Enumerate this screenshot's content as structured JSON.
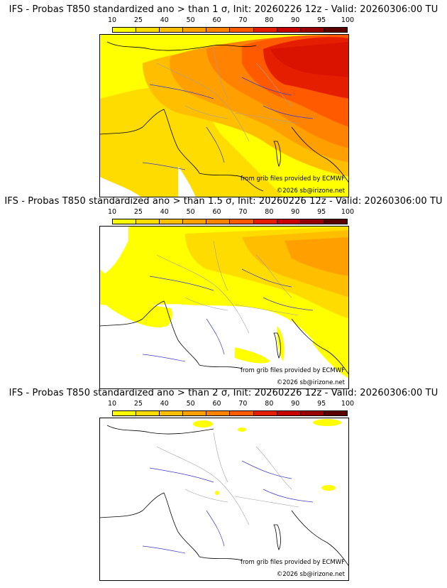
{
  "colorbar": {
    "ticks": [
      "10",
      "25",
      "40",
      "50",
      "60",
      "70",
      "80",
      "90",
      "95",
      "100"
    ],
    "colors": [
      "#ffff00",
      "#ffdc00",
      "#ffbe00",
      "#ffa000",
      "#ff8200",
      "#ff5a00",
      "#e61e00",
      "#c80000",
      "#960000",
      "#5a0000"
    ]
  },
  "panels": [
    {
      "title": "IFS - Probas T850  standardized ano > than 1 σ, Init: 20260226 12z - Valid: 20260306:00 TU",
      "sigma": "1",
      "source_note": "from grib files provided by ECMWF",
      "copyright": "©2026 sb@irizone.net"
    },
    {
      "title": "IFS - Probas T850  standardized ano > than 1.5 σ, Init: 20260226 12z - Valid: 20260306:00 TU",
      "sigma": "1.5",
      "source_note": "from grib files provided by ECMWF",
      "copyright": "©2026 sb@irizone.net"
    },
    {
      "title": "IFS - Probas T850  standardized ano > than 2 σ, Init: 20260226 12z - Valid: 20260306:00 TU",
      "sigma": "2",
      "source_note": "from grib files provided by ECMWF",
      "copyright": "©2026 sb@irizone.net"
    }
  ],
  "colors": {
    "coast": "#000000",
    "rivers": "#3a3acc",
    "borders": "#a0a0a0",
    "sea": "#ffffff"
  }
}
